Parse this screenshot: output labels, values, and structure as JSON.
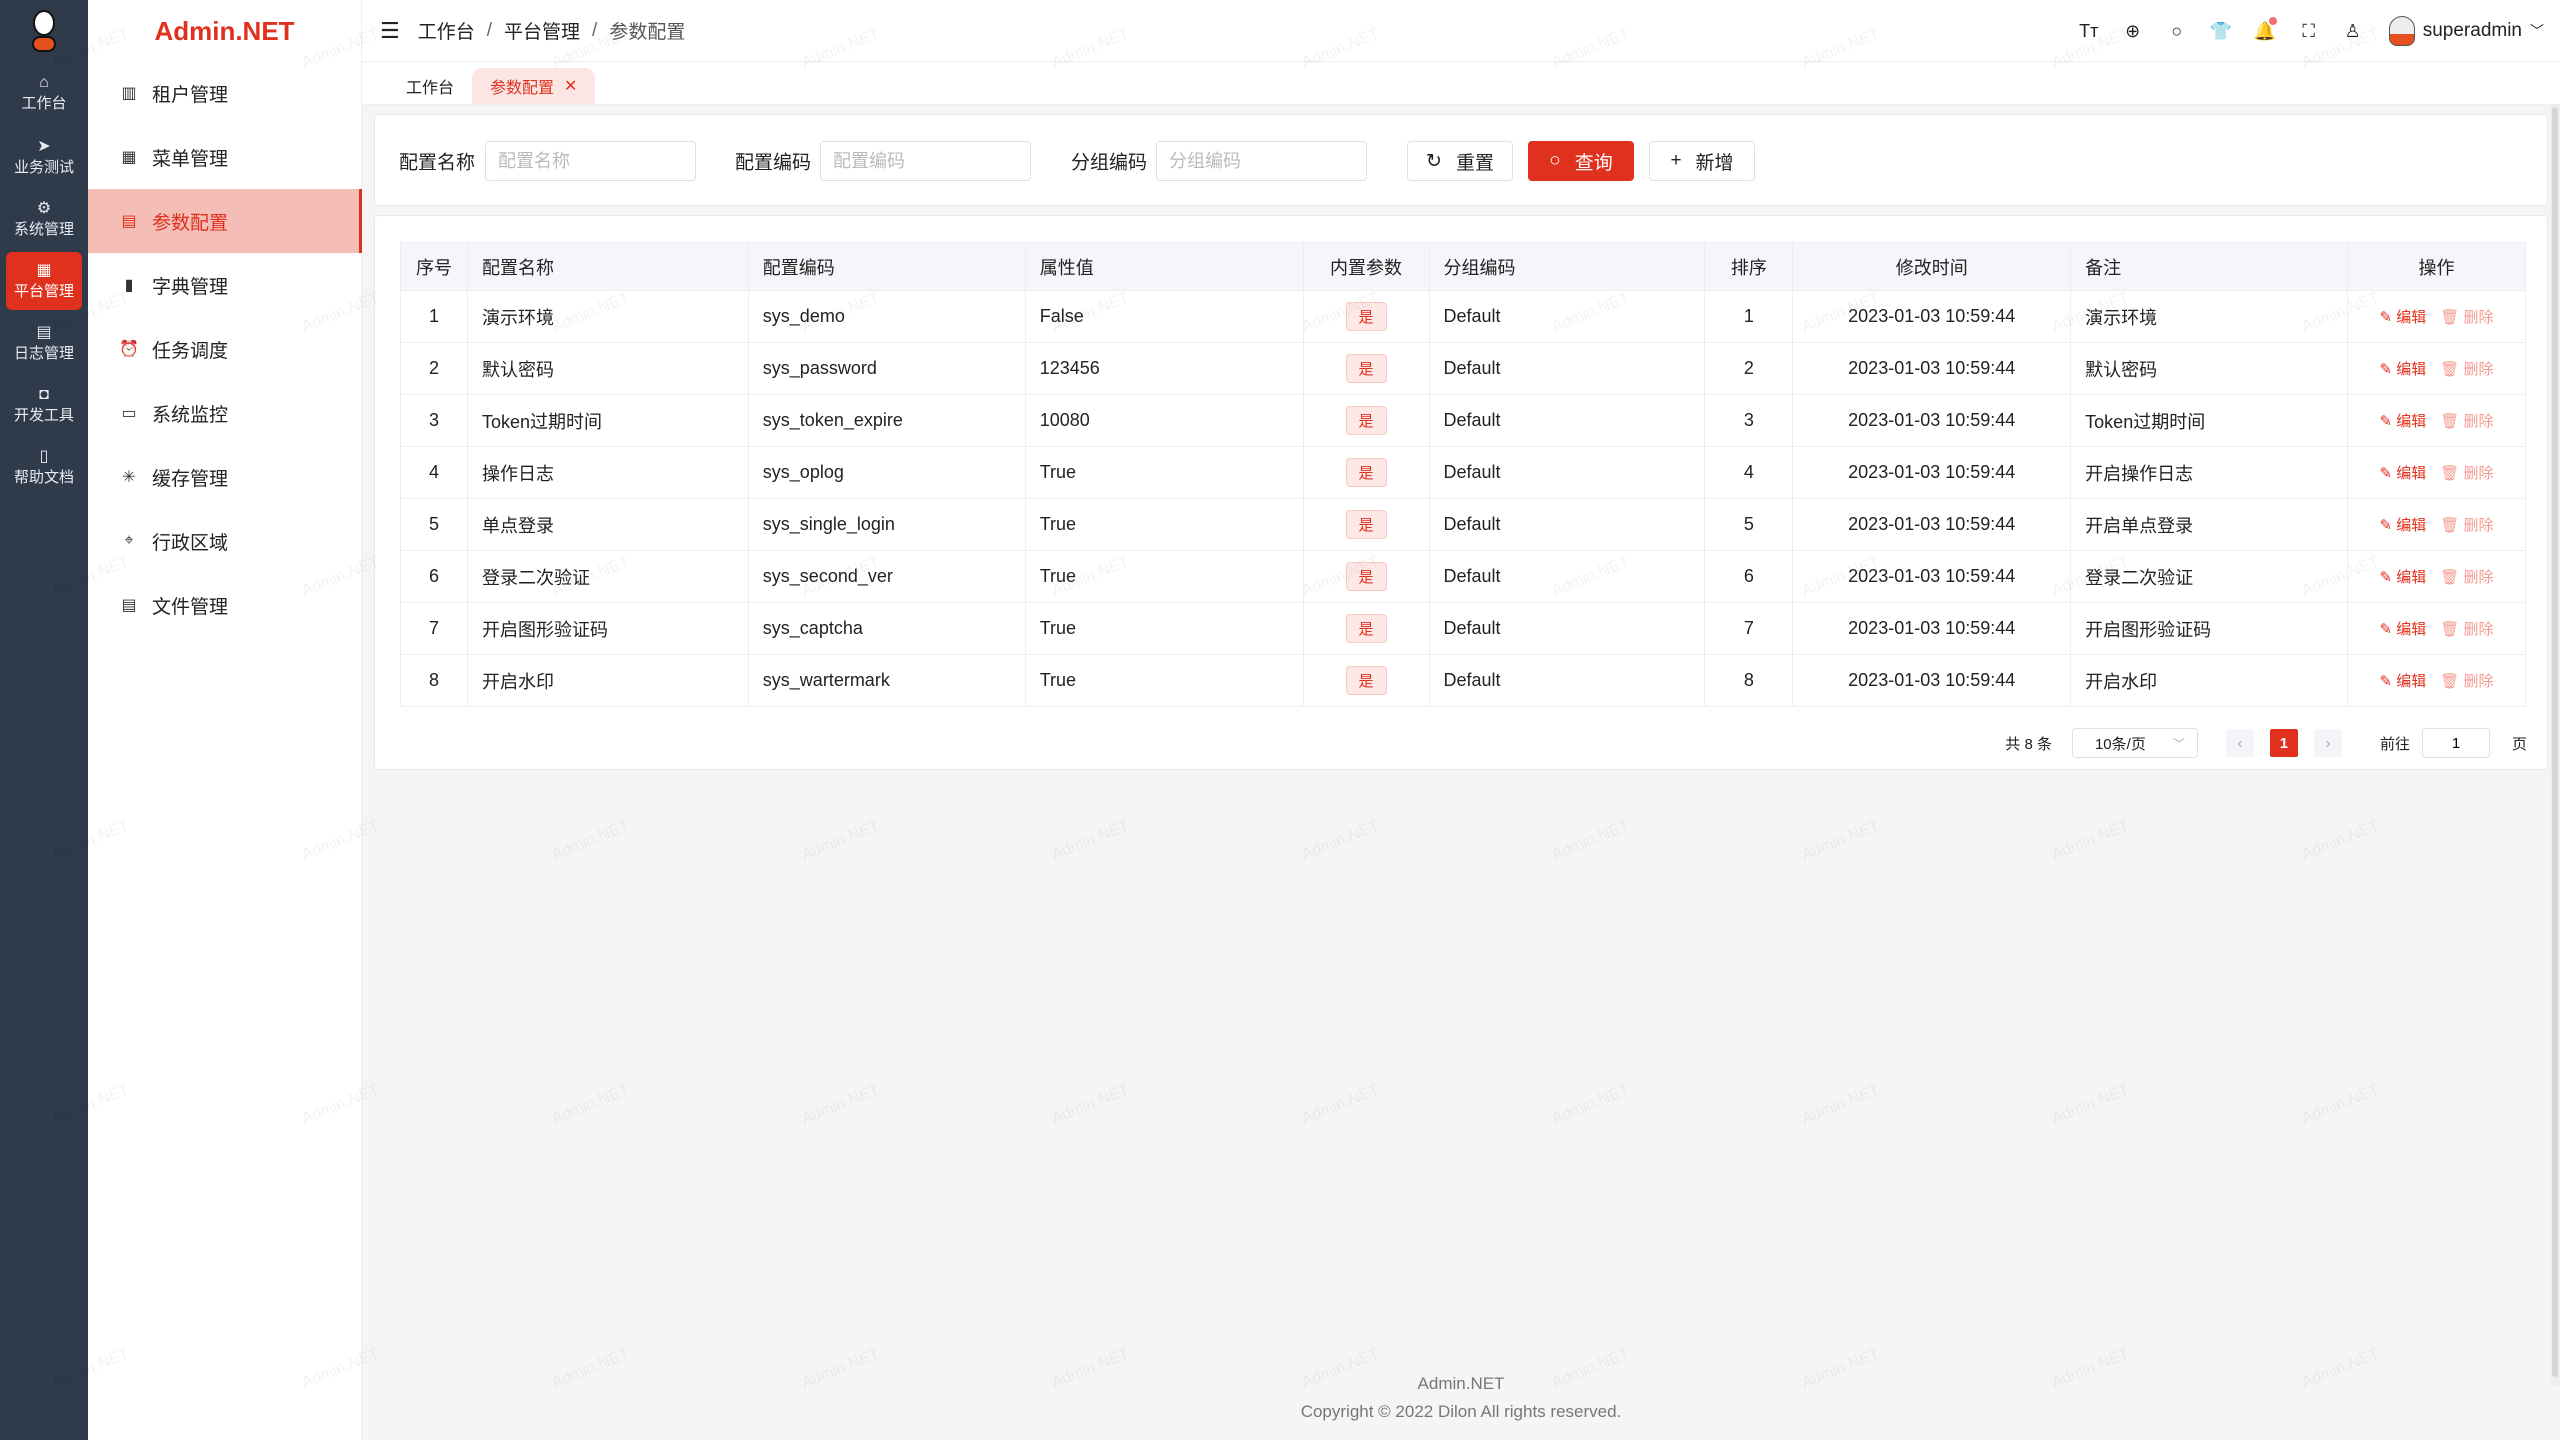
{
  "rail": {
    "items": [
      {
        "label": "工作台",
        "icon": "home-icon",
        "glyph": "⌂"
      },
      {
        "label": "业务测试",
        "icon": "send-icon",
        "glyph": "➤"
      },
      {
        "label": "系统管理",
        "icon": "gear-icon",
        "glyph": "⚙"
      },
      {
        "label": "平台管理",
        "icon": "grid-icon",
        "glyph": "▦",
        "active": true
      },
      {
        "label": "日志管理",
        "icon": "document-icon",
        "glyph": "▤"
      },
      {
        "label": "开发工具",
        "icon": "chip-icon",
        "glyph": "◘"
      },
      {
        "label": "帮助文档",
        "icon": "book-icon",
        "glyph": "▯"
      }
    ]
  },
  "sidebar": {
    "brand": "Admin.NET",
    "items": [
      {
        "label": "租户管理",
        "icon": "building-icon",
        "glyph": "▥"
      },
      {
        "label": "菜单管理",
        "icon": "grid-icon",
        "glyph": "▦"
      },
      {
        "label": "参数配置",
        "icon": "document-icon",
        "glyph": "▤",
        "active": true
      },
      {
        "label": "字典管理",
        "icon": "book-icon",
        "glyph": "▮"
      },
      {
        "label": "任务调度",
        "icon": "alarm-clock-icon",
        "glyph": "⏰"
      },
      {
        "label": "系统监控",
        "icon": "monitor-icon",
        "glyph": "▭"
      },
      {
        "label": "缓存管理",
        "icon": "loading-icon",
        "glyph": "✳"
      },
      {
        "label": "行政区域",
        "icon": "location-icon",
        "glyph": "⌖"
      },
      {
        "label": "文件管理",
        "icon": "file-icon",
        "glyph": "▤"
      }
    ]
  },
  "header": {
    "breadcrumb": [
      "工作台",
      "平台管理",
      "参数配置"
    ],
    "separator": "/",
    "user": "superadmin",
    "tools": [
      {
        "icon": "font-size-icon",
        "glyph": "Tт"
      },
      {
        "icon": "language-icon",
        "glyph": "⊕"
      },
      {
        "icon": "search-icon",
        "glyph": "○"
      },
      {
        "icon": "skin-icon",
        "glyph": "👕"
      },
      {
        "icon": "bell-icon",
        "glyph": "🔔",
        "badge": true
      },
      {
        "icon": "fullscreen-icon",
        "glyph": "⛶"
      },
      {
        "icon": "user-icon",
        "glyph": "♙"
      }
    ]
  },
  "tabs": [
    {
      "label": "工作台"
    },
    {
      "label": "参数配置",
      "active": true,
      "close": "✕"
    }
  ],
  "search": {
    "fields": [
      {
        "label": "配置名称",
        "placeholder": "配置名称",
        "value": ""
      },
      {
        "label": "配置编码",
        "placeholder": "配置编码",
        "value": ""
      },
      {
        "label": "分组编码",
        "placeholder": "分组编码",
        "value": ""
      }
    ],
    "reset": "重置",
    "query": "查询",
    "add": "新增"
  },
  "table": {
    "columns": [
      "序号",
      "配置名称",
      "配置编码",
      "属性值",
      "内置参数",
      "分组编码",
      "排序",
      "修改时间",
      "备注",
      "操作"
    ],
    "rows": [
      [
        "1",
        "演示环境",
        "sys_demo",
        "False",
        "是",
        "Default",
        "1",
        "2023-01-03 10:59:44",
        "演示环境"
      ],
      [
        "2",
        "默认密码",
        "sys_password",
        "123456",
        "是",
        "Default",
        "2",
        "2023-01-03 10:59:44",
        "默认密码"
      ],
      [
        "3",
        "Token过期时间",
        "sys_token_expire",
        "10080",
        "是",
        "Default",
        "3",
        "2023-01-03 10:59:44",
        "Token过期时间"
      ],
      [
        "4",
        "操作日志",
        "sys_oplog",
        "True",
        "是",
        "Default",
        "4",
        "2023-01-03 10:59:44",
        "开启操作日志"
      ],
      [
        "5",
        "单点登录",
        "sys_single_login",
        "True",
        "是",
        "Default",
        "5",
        "2023-01-03 10:59:44",
        "开启单点登录"
      ],
      [
        "6",
        "登录二次验证",
        "sys_second_ver",
        "True",
        "是",
        "Default",
        "6",
        "2023-01-03 10:59:44",
        "登录二次验证"
      ],
      [
        "7",
        "开启图形验证码",
        "sys_captcha",
        "True",
        "是",
        "Default",
        "7",
        "2023-01-03 10:59:44",
        "开启图形验证码"
      ],
      [
        "8",
        "开启水印",
        "sys_wartermark",
        "True",
        "是",
        "Default",
        "8",
        "2023-01-03 10:59:44",
        "开启水印"
      ]
    ],
    "edit": "编辑",
    "delete": "删除"
  },
  "pagination": {
    "total": "共 8 条",
    "page_size": "10条/页",
    "current": "1",
    "prev": "‹",
    "next": "›",
    "goto_label": "前往",
    "goto_value": "1",
    "page_suffix": "页"
  },
  "footer": {
    "name": "Admin.NET",
    "copyright": "Copyright © 2022 Dilon All rights reserved."
  },
  "watermark": "Admin.NET",
  "colors": {
    "accent": "#e0301e",
    "rail": "#2f3a4a",
    "active_menu_bg": "#f4bdb5"
  }
}
